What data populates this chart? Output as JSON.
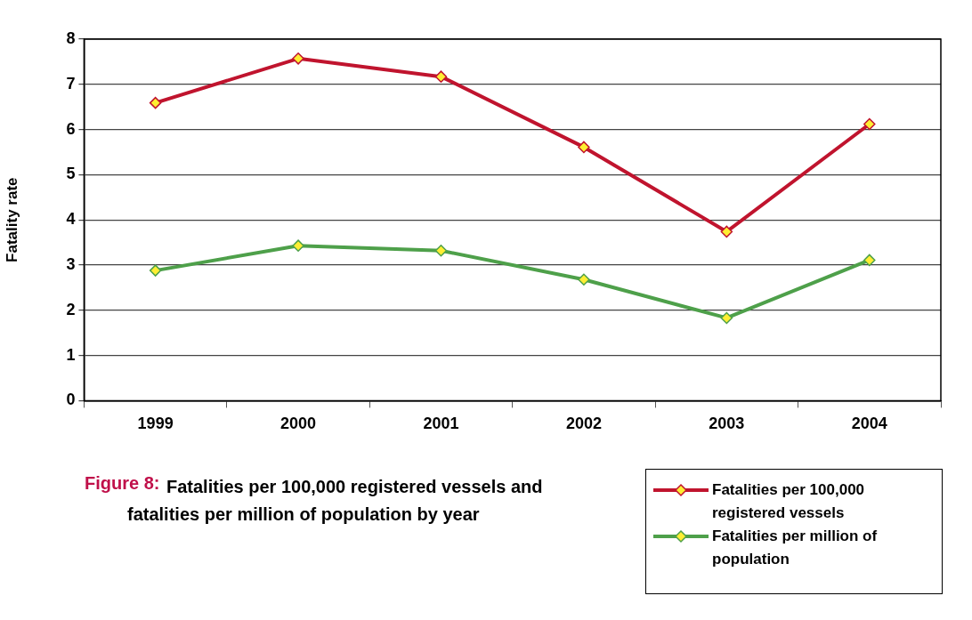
{
  "chart_data": {
    "type": "line",
    "title": "Figure 8:",
    "subtitle": "Fatalities per 100,000 registered vessels and fatalities per million of population by year",
    "ylabel": "Fatality rate",
    "categories": [
      "1999",
      "2000",
      "2001",
      "2002",
      "2003",
      "2004"
    ],
    "series": [
      {
        "name": "Fatalities per 100,000 registered vessels",
        "color": "#c0142e",
        "values": [
          6.59,
          7.57,
          7.17,
          5.61,
          3.74,
          6.12
        ]
      },
      {
        "name": "Fatalities per million of population",
        "color": "#4ea04a",
        "values": [
          2.88,
          3.43,
          3.32,
          2.68,
          1.83,
          3.11
        ]
      }
    ],
    "ylim": [
      0,
      8
    ],
    "yticks": [
      0,
      1,
      2,
      3,
      4,
      5,
      6,
      7,
      8
    ],
    "grid": "y",
    "legend": "bottom right",
    "marker": "diamond",
    "line_style": "solid"
  }
}
